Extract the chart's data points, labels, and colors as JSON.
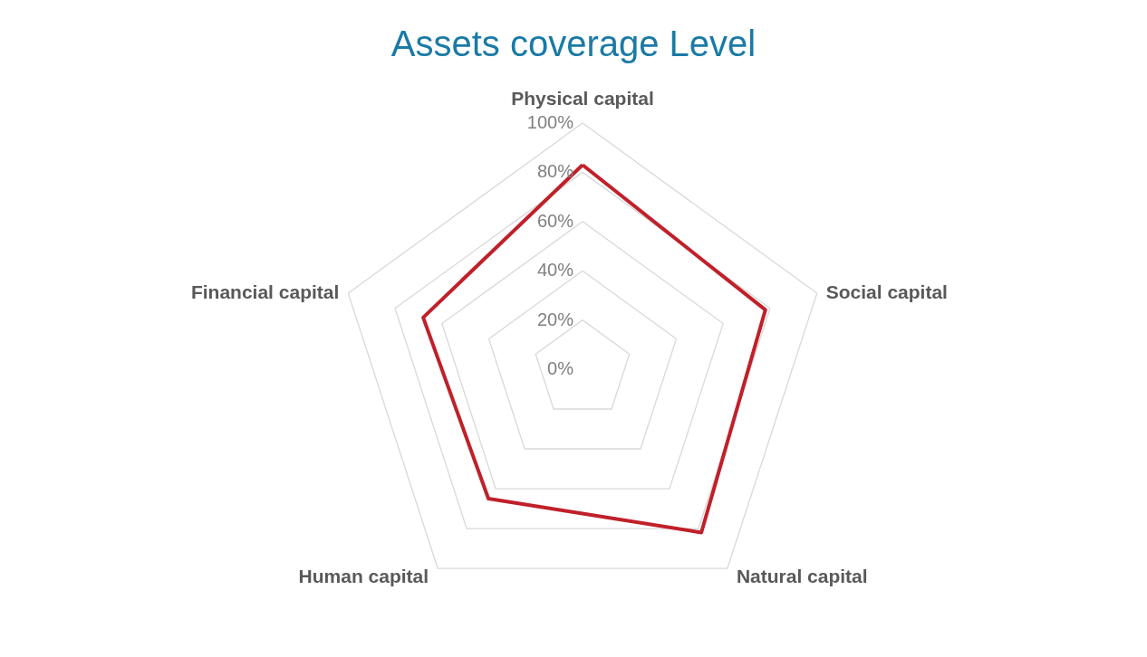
{
  "chart_data": {
    "type": "radar",
    "title": "Assets coverage Level",
    "categories": [
      "Physical capital",
      "Social capital",
      "Natural capital",
      "Human capital",
      "Financial capital"
    ],
    "series": [
      {
        "color": "#c0202a",
        "values": [
          83,
          78,
          82,
          65,
          68
        ]
      }
    ],
    "ylim": [
      0,
      100
    ],
    "yticks": [
      {
        "value": 0,
        "label": "0%"
      },
      {
        "value": 20,
        "label": "20%"
      },
      {
        "value": 40,
        "label": "40%"
      },
      {
        "value": 60,
        "label": "60%"
      },
      {
        "value": 80,
        "label": "80%"
      },
      {
        "value": 100,
        "label": "100%"
      }
    ],
    "grid": true
  }
}
